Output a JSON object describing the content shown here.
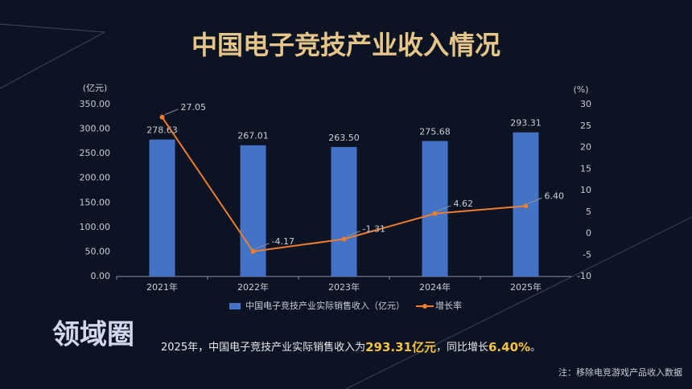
{
  "chart_data": {
    "type": "bar",
    "title": "中国电子竞技产业收入情况",
    "y_unit": "(亿元)",
    "y2_unit": "(%)",
    "categories": [
      "2021年",
      "2022年",
      "2023年",
      "2024年",
      "2025年"
    ],
    "series": [
      {
        "name": "中国电子竞技产业实际销售收入（亿元）",
        "type": "bar",
        "color": "#4472c4",
        "values": [
          278.63,
          267.01,
          263.5,
          275.68,
          293.31
        ],
        "value_labels": [
          "278.63",
          "267.01",
          "263.50",
          "275.68",
          "293.31"
        ]
      },
      {
        "name": "增长率",
        "type": "line",
        "axis": "y2",
        "color": "#ed7d31",
        "values": [
          27.05,
          -4.17,
          -1.31,
          4.62,
          6.4
        ],
        "value_labels": [
          "27.05",
          "-4.17",
          "-1.31",
          "4.62",
          "6.40"
        ]
      }
    ],
    "ylim": [
      0,
      350
    ],
    "yticks": [
      {
        "value": 0,
        "label": "0.00"
      },
      {
        "value": 50,
        "label": "50.00"
      },
      {
        "value": 100,
        "label": "100.00"
      },
      {
        "value": 150,
        "label": "150.00"
      },
      {
        "value": 200,
        "label": "200.00"
      },
      {
        "value": 250,
        "label": "250.00"
      },
      {
        "value": 300,
        "label": "300.00"
      },
      {
        "value": 350,
        "label": "350.00"
      }
    ],
    "y2lim": [
      -10,
      30
    ],
    "y2ticks": [
      -10,
      -5,
      0,
      5,
      10,
      15,
      20,
      25,
      30
    ],
    "legend": "bottom",
    "caption": [
      "2025年，中国电子竞技产业实际销售收入为",
      "293.31亿元",
      "，同比增长",
      "6.40%",
      "。"
    ],
    "note": "注：移除电竞游戏产品收入数据",
    "watermark": "领域圈"
  }
}
